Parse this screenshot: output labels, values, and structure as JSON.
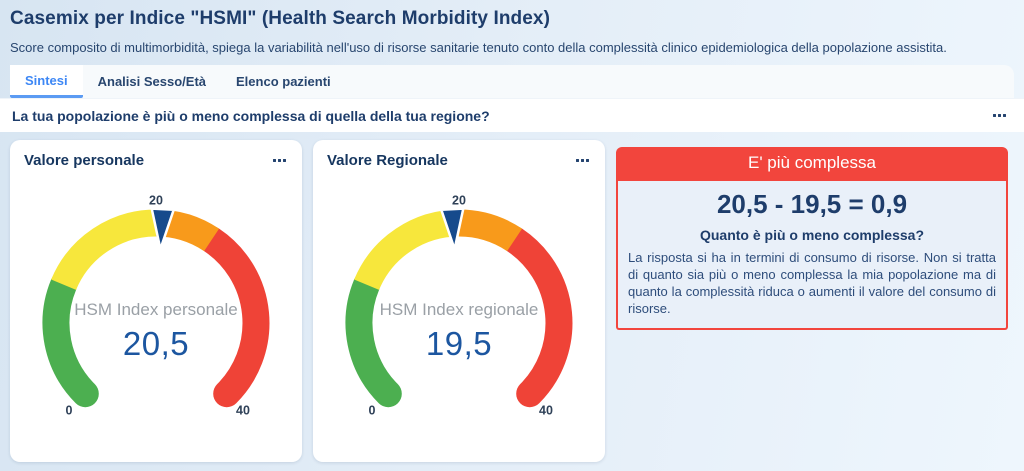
{
  "page": {
    "title": "Casemix per Indice \"HSMI\" (Health Search Morbidity Index)",
    "subtitle": "Score composito di multimorbidità, spiega la variabilità nell'uso di risorse sanitarie tenuto conto della complessità clinico epidemiologica della popolazione assistita."
  },
  "tabs": [
    {
      "label": "Sintesi",
      "active": true
    },
    {
      "label": "Analisi Sesso/Età",
      "active": false
    },
    {
      "label": "Elenco pazienti",
      "active": false
    }
  ],
  "question_bar": {
    "text": "La tua popolazione è più o meno complessa di quella della tua regione?",
    "menu_icon": "ellipsis-icon"
  },
  "chart_data": [
    {
      "type": "gauge",
      "title": "Valore personale",
      "label": "HSM Index personale",
      "value": 20.5,
      "value_display": "20,5",
      "min": 0,
      "max": 40,
      "start_angle": 225,
      "end_angle": -45,
      "axis_labels": [
        {
          "value": 0,
          "text": "0"
        },
        {
          "value": 20,
          "text": "20"
        },
        {
          "value": 40,
          "text": "40"
        }
      ],
      "segments": [
        {
          "name": "green",
          "from": 0,
          "to": 10,
          "color": "#4caf50"
        },
        {
          "name": "yellow",
          "from": 10,
          "to": 20,
          "color": "#f7e73c"
        },
        {
          "name": "orange",
          "from": 20,
          "to": 25,
          "color": "#f89a1b"
        },
        {
          "name": "red",
          "from": 25,
          "to": 40,
          "color": "#ef4337"
        }
      ],
      "pointer_color": "#164a8c",
      "menu_icon": "ellipsis-icon"
    },
    {
      "type": "gauge",
      "title": "Valore Regionale",
      "label": "HSM Index regionale",
      "value": 19.5,
      "value_display": "19,5",
      "min": 0,
      "max": 40,
      "start_angle": 225,
      "end_angle": -45,
      "axis_labels": [
        {
          "value": 0,
          "text": "0"
        },
        {
          "value": 20,
          "text": "20"
        },
        {
          "value": 40,
          "text": "40"
        }
      ],
      "segments": [
        {
          "name": "green",
          "from": 0,
          "to": 10,
          "color": "#4caf50"
        },
        {
          "name": "yellow",
          "from": 10,
          "to": 20,
          "color": "#f7e73c"
        },
        {
          "name": "orange",
          "from": 20,
          "to": 25,
          "color": "#f89a1b"
        },
        {
          "name": "red",
          "from": 25,
          "to": 40,
          "color": "#ef4337"
        }
      ],
      "pointer_color": "#164a8c",
      "menu_icon": "ellipsis-icon"
    }
  ],
  "result_panel": {
    "header": "E' più complessa",
    "formula": "20,5 - 19,5 = 0,9",
    "subheading": "Quanto è più o meno complessa?",
    "body": "La risposta si ha in termini di consumo di risorse. Non si tratta di quanto sia più o meno complessa la mia popolazione ma di quanto la complessità riduca o aumenti il valore del consumo di risorse."
  },
  "colors": {
    "accent_blue": "#3d87f5",
    "navy_text": "#1e3d6b",
    "result_red": "#f2453d",
    "gauge_green": "#4caf50",
    "gauge_yellow": "#f7e73c",
    "gauge_orange": "#f89a1b",
    "gauge_red": "#ef4337",
    "pointer_navy": "#164a8c",
    "value_blue": "#1c56a0",
    "center_label_gray": "#9aa0a6",
    "result_body_bg": "#e9f0f9",
    "page_bg_left": "#d7e5f2",
    "page_bg_right": "#eef6fd"
  }
}
